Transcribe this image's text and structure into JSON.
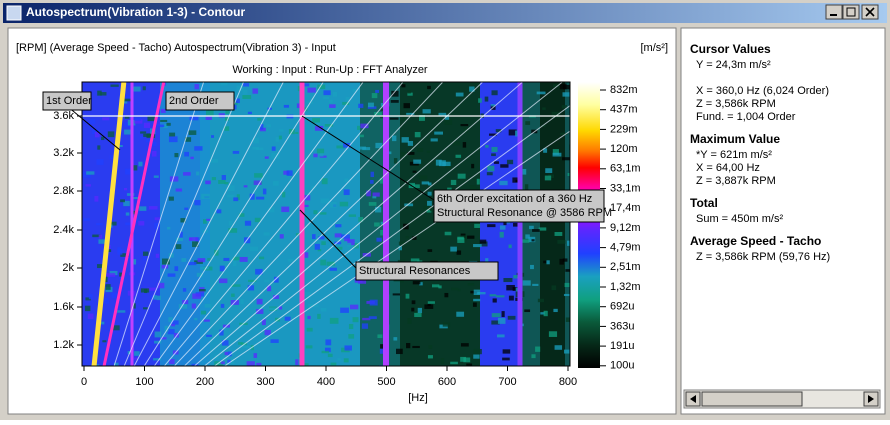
{
  "window": {
    "title": "Autospectrum(Vibration 1-3) - Contour"
  },
  "plot": {
    "header": "[RPM] (Average Speed - Tacho) Autospectrum(Vibration 3) - Input",
    "unit": "[m/s²]",
    "subheader": "Working : Input : Run-Up : FFT Analyzer",
    "y_ticks": [
      "3.6k",
      "3.2k",
      "2.8k",
      "2.4k",
      "2k",
      "1.6k",
      "1.2k"
    ],
    "x_ticks": [
      "0",
      "100",
      "200",
      "300",
      "400",
      "500",
      "600",
      "700",
      "800"
    ],
    "x_label": "[Hz]",
    "colorbar_labels": [
      "832m",
      "437m",
      "229m",
      "120m",
      "63,1m",
      "33,1m",
      "17,4m",
      "9,12m",
      "4,79m",
      "2,51m",
      "1,32m",
      "692u",
      "363u",
      "191u",
      "100u"
    ],
    "annotations": [
      {
        "lines": [
          "1st Order"
        ]
      },
      {
        "lines": [
          "2nd Order"
        ]
      },
      {
        "lines": [
          "6th Order excitation of a 360 Hz",
          "Structural Resonance @ 3586 RPM"
        ]
      },
      {
        "lines": [
          "Structural Resonances"
        ]
      }
    ]
  },
  "panel": {
    "sections": [
      {
        "heading": "Cursor Values",
        "lines": [
          "Y = 24,3m m/s²",
          "",
          "X = 360,0 Hz (6,024 Order)",
          "Z = 3,586k RPM",
          "Fund. = 1,004 Order"
        ]
      },
      {
        "heading": "Maximum Value",
        "lines": [
          "*Y = 621m m/s²",
          "X = 64,00 Hz",
          "Z = 3,887k RPM"
        ]
      },
      {
        "heading": "Total",
        "lines": [
          "Sum = 450m m/s²"
        ]
      },
      {
        "heading": "Average Speed - Tacho",
        "lines": [
          "Z = 3,586k RPM (59,76 Hz)"
        ]
      }
    ]
  }
}
